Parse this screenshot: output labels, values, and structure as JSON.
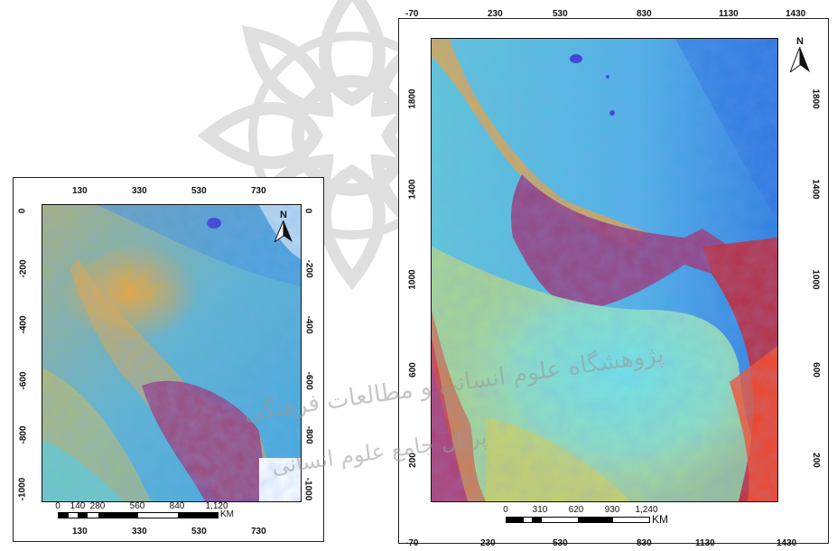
{
  "left_map": {
    "top_ticks": [
      "130",
      "330",
      "530",
      "730"
    ],
    "bottom_ticks": [
      "130",
      "330",
      "530",
      "730"
    ],
    "left_ticks": [
      "0",
      "-200",
      "-400",
      "-600",
      "-800",
      "-1000"
    ],
    "right_ticks": [
      "0",
      "-200",
      "-400",
      "-600",
      "-800",
      "-1000"
    ],
    "north_label": "N",
    "scale_labels": [
      "0",
      "140",
      "280",
      "560",
      "840",
      "1,120"
    ],
    "scale_unit": "KM"
  },
  "right_map": {
    "top_ticks": [
      "-70",
      "230",
      "530",
      "830",
      "1130",
      "1430"
    ],
    "bottom_ticks": [
      "-70",
      "230",
      "530",
      "830",
      "1130",
      "1430"
    ],
    "left_ticks": [
      "1800",
      "1400",
      "1000",
      "600",
      "200"
    ],
    "right_ticks": [
      "1800",
      "1400",
      "1000",
      "600",
      "200"
    ],
    "north_label": "N",
    "scale_labels": [
      "0",
      "310",
      "620",
      "930",
      "1,240"
    ],
    "scale_unit": "KM"
  },
  "watermark": {
    "line1": "پژوهشگاه علوم انسانی و مطالعات فرهنگی",
    "line2": "پرتال جامع علوم انسانی"
  },
  "colors": {
    "water_cyan": "#4fd4e6",
    "land_blue": "#3f8fe0",
    "desert_yellow": "#e8c23a",
    "orange": "#f2a232",
    "magenta": "#9a3a78",
    "red": "#e23a2a"
  }
}
